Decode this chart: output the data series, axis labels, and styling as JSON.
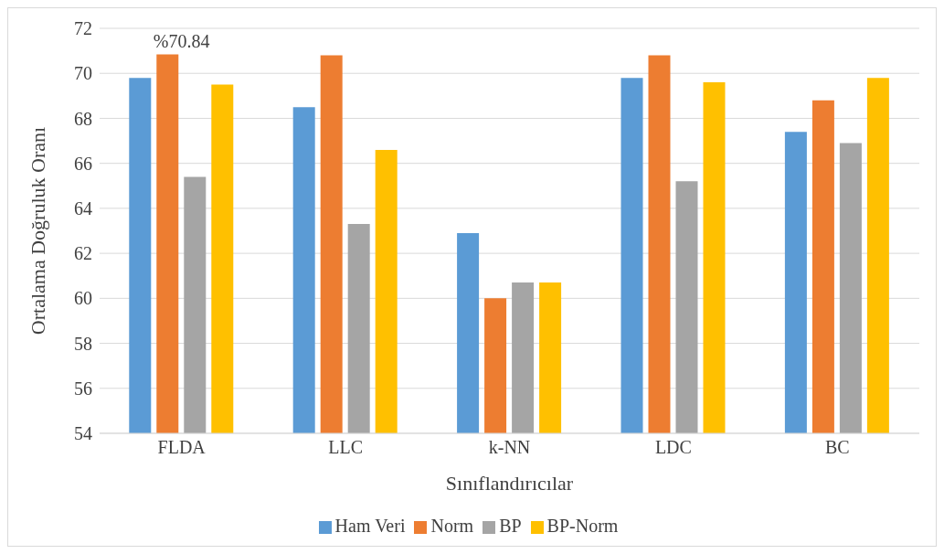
{
  "chart_data": {
    "type": "bar",
    "xlabel": "Sınıflandırıcılar",
    "ylabel": "Ortalama Doğruluk Oranı",
    "categories": [
      "FLDA",
      "LLC",
      "k-NN",
      "LDC",
      "BC"
    ],
    "series": [
      {
        "name": "Ham Veri",
        "color": "#5b9bd5",
        "values": [
          69.8,
          68.5,
          62.9,
          69.8,
          67.4
        ]
      },
      {
        "name": "Norm",
        "color": "#ed7d31",
        "values": [
          70.84,
          70.8,
          60.0,
          70.8,
          68.8
        ]
      },
      {
        "name": "BP",
        "color": "#a5a5a5",
        "values": [
          65.4,
          63.3,
          60.7,
          65.2,
          66.9
        ]
      },
      {
        "name": "BP-Norm",
        "color": "#ffc000",
        "values": [
          69.5,
          66.6,
          60.7,
          69.6,
          69.8
        ]
      }
    ],
    "ylim": [
      54,
      72
    ],
    "yticks": [
      54,
      56,
      58,
      60,
      62,
      64,
      66,
      68,
      70,
      72
    ],
    "grid": "y",
    "legend": "bottom",
    "annotations": [
      {
        "text": "%70.84",
        "x": "FLDA",
        "y": 70.84
      }
    ]
  }
}
